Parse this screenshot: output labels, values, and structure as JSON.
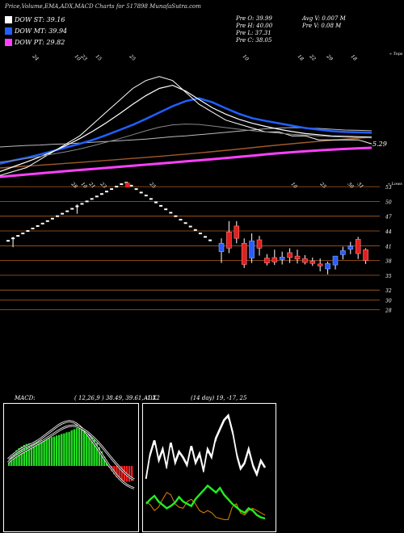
{
  "header": {
    "title": "Price,Volume,EMA,ADX,MACD Charts for 517898 MunafaSutra.com"
  },
  "legend": [
    {
      "label": "DOW ST: 39.16",
      "color": "#ffffff"
    },
    {
      "label": "DOW MT: 39.94",
      "color": "#2060ff"
    },
    {
      "label": "DOW PT: 29.82",
      "color": "#ff40ff"
    }
  ],
  "stats": {
    "left": [
      "Pre   O: 39.99",
      "Pre   H: 40.00",
      "Pre   L: 37.31",
      "Pre   C: 38.05"
    ],
    "right": [
      "Avg V: 0.007 M",
      "Pre   V: 0.08   M"
    ]
  },
  "colors": {
    "ema_long": "#ff40ff",
    "ema_mid": "#2060ff",
    "ema_brown": "#a05a2c",
    "up": "#2a5cff",
    "down": "#e02020",
    "hline": "#b06020",
    "macd_pos": "#22dd22",
    "macd_neg": "#ee2222",
    "adx_green": "#22ee22",
    "adx_orange": "#dd8800"
  },
  "chart_data": [
    {
      "type": "line",
      "name": "ema-panel",
      "top_labels": [
        "24",
        "10",
        "23",
        "15",
        "25",
        "10",
        "18",
        "22",
        "29",
        "18"
      ],
      "right_label": "« Tops",
      "value_label": "5.29",
      "series": [
        {
          "name": "",
          "values": [
            40.2,
            40.4,
            40.6,
            40.7,
            40.9,
            41.0,
            41.2,
            41.4,
            41.6,
            41.8,
            42.0,
            42.2,
            42.5,
            42.8,
            43.0,
            43.3,
            43.6,
            43.9,
            44.2,
            44.5,
            44.8,
            45.0,
            45.1,
            45.0,
            44.9,
            44.7,
            44.5,
            44.4,
            44.3
          ]
        },
        {
          "name": "",
          "values": [
            36.0,
            36.8,
            37.5,
            38.3,
            39.2,
            40.1,
            41.0,
            42.0,
            43.2,
            44.5,
            45.8,
            47.3,
            48.9,
            50.5,
            51.8,
            52.5,
            51.5,
            50.0,
            48.6,
            47.5,
            46.8,
            46.2,
            45.6,
            45.0,
            44.6,
            44.2,
            44.0,
            43.9,
            43.8
          ]
        },
        {
          "name": "",
          "values": [
            34.0,
            35.2,
            36.4,
            37.7,
            39.1,
            40.6,
            42.3,
            44.2,
            46.3,
            48.6,
            51.0,
            53.2,
            55.0,
            55.8,
            54.3,
            52.2,
            50.1,
            48.5,
            47.2,
            46.2,
            45.4,
            44.7,
            44.1,
            43.6,
            43.3,
            43.0,
            42.9,
            42.8,
            42.7
          ]
        },
        {
          "name": "",
          "values": [
            33,
            34,
            35,
            37,
            39,
            41,
            43,
            46,
            49,
            52,
            55,
            57,
            58,
            57,
            54,
            51,
            49,
            47,
            46,
            45,
            44,
            44,
            43,
            43,
            42,
            42,
            42,
            42,
            41
          ]
        },
        {
          "name": "",
          "values": [
            36.4,
            36.8,
            37.3,
            37.8,
            38.4,
            39.0,
            39.7,
            40.5,
            41.4,
            42.3,
            43.3,
            44.3,
            45.2,
            45.8,
            46.0,
            45.9,
            45.5,
            45.1,
            44.7,
            44.3,
            44.0,
            43.7,
            43.4,
            43.2,
            43.0,
            42.8,
            42.7,
            42.6,
            42.5
          ]
        }
      ]
    },
    {
      "type": "candlestick",
      "name": "price-panel",
      "top_labels": [
        "28",
        "10",
        "21",
        "23",
        "25",
        "10",
        "25",
        "30",
        "31"
      ],
      "right_label": "« Lows",
      "ylim": [
        28,
        54
      ],
      "price_levels": [
        53,
        50,
        47,
        44,
        41,
        38,
        35,
        32,
        30,
        28
      ],
      "dots": [
        42,
        42.5,
        43,
        43.5,
        44,
        44.5,
        45,
        45.5,
        46,
        46.5,
        47,
        47.5,
        48,
        48.5,
        49,
        49.5,
        50,
        50.5,
        51,
        51.5,
        52,
        52.5,
        53,
        53.5,
        53.8,
        53.2,
        52.5,
        51.8,
        51.2,
        50.5,
        49.8,
        49.1,
        48.4,
        47.7,
        47,
        46.3,
        45.6,
        44.9,
        44.2,
        43.5,
        42.8,
        42.1
      ],
      "candles": [
        {
          "o": 39.8,
          "h": 42.5,
          "l": 37.5,
          "c": 41.5
        },
        {
          "o": 43.8,
          "h": 46,
          "l": 39.5,
          "c": 40.5
        },
        {
          "o": 45,
          "h": 46,
          "l": 41.5,
          "c": 42.5
        },
        {
          "o": 41.5,
          "h": 42.5,
          "l": 36.5,
          "c": 37.2
        },
        {
          "o": 38.5,
          "h": 43.5,
          "l": 37.5,
          "c": 42
        },
        {
          "o": 42.2,
          "h": 43,
          "l": 39,
          "c": 40.5
        },
        {
          "o": 38.5,
          "h": 39.3,
          "l": 37,
          "c": 37.5
        },
        {
          "o": 38.6,
          "h": 40.2,
          "l": 37.1,
          "c": 37.7
        },
        {
          "o": 38.2,
          "h": 39.8,
          "l": 37.2,
          "c": 38.7
        },
        {
          "o": 39.6,
          "h": 40.5,
          "l": 37.5,
          "c": 38.6
        },
        {
          "o": 38.9,
          "h": 40.2,
          "l": 37.4,
          "c": 38.3
        },
        {
          "o": 38.4,
          "h": 39.1,
          "l": 37.2,
          "c": 37.6
        },
        {
          "o": 37.9,
          "h": 38.6,
          "l": 36.9,
          "c": 37.4
        },
        {
          "o": 37.3,
          "h": 38.4,
          "l": 35.8,
          "c": 36.9
        },
        {
          "o": 36.3,
          "h": 37.8,
          "l": 35.2,
          "c": 37.4
        },
        {
          "o": 37.1,
          "h": 38.8,
          "l": 36.2,
          "c": 38.9
        },
        {
          "o": 39.2,
          "h": 40.8,
          "l": 38.2,
          "c": 40
        },
        {
          "o": 40.3,
          "h": 41.8,
          "l": 39.3,
          "c": 40.9
        },
        {
          "o": 42.3,
          "h": 42.8,
          "l": 38.3,
          "c": 39.4
        },
        {
          "o": 40.2,
          "h": 40.5,
          "l": 37.3,
          "c": 38
        }
      ]
    },
    {
      "type": "bar",
      "name": "macd-panel",
      "label": "MACD:",
      "params": "( 12,26,9 ) 38.49,  39.61,  -1.12",
      "histogram": [
        1,
        2,
        2.5,
        3,
        3.4,
        3.7,
        4,
        4.2,
        4.3,
        4.3,
        4.4,
        4.6,
        4.7,
        4.9,
        5,
        5.2,
        5.3,
        5.5,
        5.6,
        5.8,
        5.9,
        6.1,
        6.2,
        6.4,
        6.5,
        6.8,
        7,
        7.2,
        7.2,
        7,
        6.5,
        6.2,
        5.8,
        5.4,
        5,
        4.4,
        3.6,
        2.8,
        1.8,
        0.8,
        -0.3,
        -1,
        -1.6,
        -2.2,
        -2.6,
        -2.8,
        -2.9,
        -3,
        -3,
        -2.9
      ],
      "macd_line": [
        2,
        3,
        3.8,
        4.6,
        5.2,
        5.7,
        6.2,
        6.7,
        7.3,
        8,
        8.8,
        9.6,
        10.4,
        11.2,
        12,
        12.6,
        13,
        13.2,
        13,
        12.4,
        11.6,
        10.6,
        9.4,
        8,
        6.5,
        5,
        3.4,
        1.8,
        0.2,
        -1.2,
        -2.6,
        -3.8,
        -4.8,
        -5.6,
        -6.2,
        -6.6
      ],
      "signal_line": [
        1,
        2,
        2.7,
        3.4,
        4,
        4.6,
        5.2,
        5.8,
        6.4,
        7,
        7.6,
        8.3,
        9,
        9.7,
        10.4,
        11,
        11.5,
        11.8,
        11.9,
        11.7,
        11.3,
        10.7,
        10,
        9.1,
        8.1,
        7,
        5.8,
        4.5,
        3.2,
        1.9,
        0.7,
        -0.5,
        -1.6,
        -2.6,
        -3.4,
        -4
      ]
    },
    {
      "type": "line",
      "name": "adx-panel",
      "label": "ADX",
      "params": "(14 day) 19,  -17,  25",
      "series": [
        {
          "name": "",
          "values": [
            35,
            58,
            70,
            52,
            62,
            45,
            68,
            50,
            60,
            55,
            48,
            65,
            50,
            58,
            42,
            62,
            55,
            72,
            80,
            88,
            92,
            78,
            58,
            45,
            50,
            62,
            48,
            40,
            52,
            46
          ]
        },
        {
          "name": "",
          "values": [
            40,
            62,
            74,
            56,
            66,
            49,
            72,
            54,
            64,
            59,
            52,
            69,
            54,
            62,
            46,
            66,
            59,
            76,
            84,
            92,
            96,
            82,
            62,
            49,
            54,
            66,
            52,
            44,
            56,
            50
          ]
        },
        {
          "name": "",
          "values": [
            18,
            22,
            25,
            20,
            17,
            14,
            16,
            19,
            24,
            20,
            18,
            16,
            22,
            26,
            30,
            34,
            31,
            28,
            32,
            26,
            22,
            18,
            15,
            12,
            10,
            14,
            12,
            8,
            6,
            5
          ]
        },
        {
          "name": "",
          "values": [
            20,
            17,
            12,
            15,
            22,
            28,
            26,
            18,
            15,
            14,
            20,
            22,
            18,
            12,
            10,
            12,
            10,
            6,
            5,
            4,
            4,
            15,
            18,
            10,
            8,
            12,
            14,
            12,
            10,
            8
          ]
        }
      ]
    }
  ]
}
